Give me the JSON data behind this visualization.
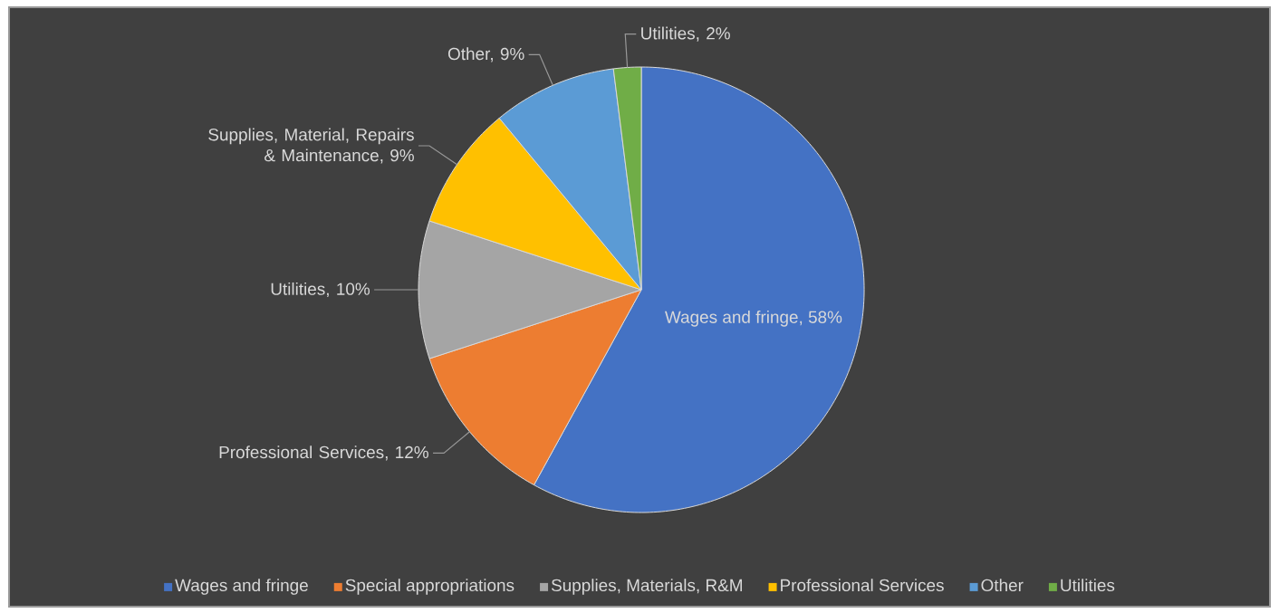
{
  "chart_data": {
    "type": "pie",
    "categories": [
      "Wages and fringe",
      "Special appropriations",
      "Supplies, Materials, R&M",
      "Professional Services",
      "Other",
      "Utilities"
    ],
    "values": [
      58,
      12,
      10,
      9,
      9,
      2
    ],
    "colors": [
      "#4472c4",
      "#ed7d31",
      "#a5a5a5",
      "#ffc000",
      "#5b9bd5",
      "#70ad47"
    ],
    "value_labels": [
      "Wages and fringe, 58%",
      "Professional Services, 12%",
      "Utilities, 10%",
      "Supplies, Material, Repairs & Maintenance, 9%",
      "Other, 9%",
      "Utilities, 2%"
    ],
    "legend": "bottom"
  }
}
